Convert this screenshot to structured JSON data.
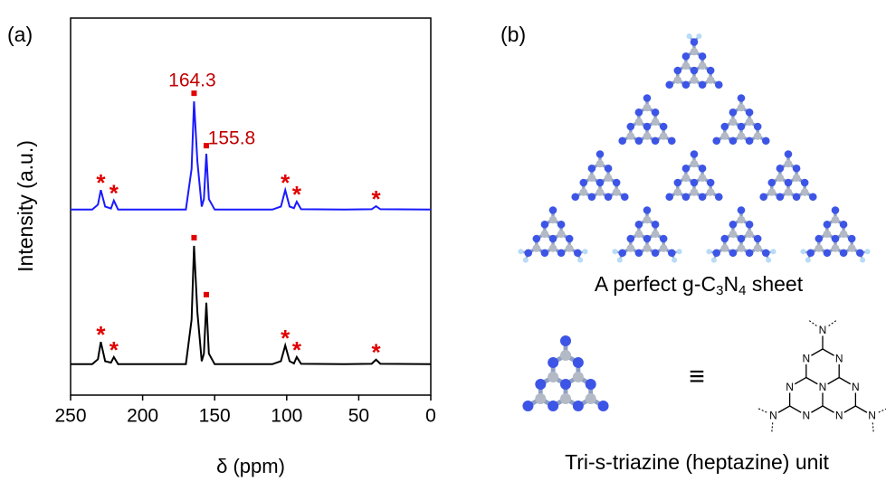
{
  "chart_data": {
    "type": "line",
    "panel_label": "(a)",
    "y_label": "Intensity (a.u.)",
    "x_label": "δ (ppm)",
    "xlim": [
      250,
      0
    ],
    "xticks": [
      250,
      200,
      150,
      100,
      50,
      0
    ],
    "ylim": [
      0,
      100
    ],
    "x": [
      250,
      235,
      231,
      229,
      226,
      222,
      220,
      217,
      200,
      170,
      166,
      164.3,
      162,
      159,
      157.5,
      155.8,
      154,
      150,
      110,
      104,
      101,
      98,
      95,
      93,
      90,
      60,
      41,
      38,
      35,
      0
    ],
    "series": [
      {
        "color": "#1a1aff",
        "values": [
          49.2,
          49.2,
          50.5,
          54.4,
          50,
          49.5,
          51.6,
          49.2,
          49.2,
          49.2,
          60,
          77.9,
          62,
          50,
          52,
          64,
          52,
          49.2,
          49.2,
          50,
          54.4,
          50,
          49.6,
          51.3,
          49.3,
          49.2,
          49.3,
          50.1,
          49.3,
          49.2
        ]
      },
      {
        "color": "#000000",
        "values": [
          8.2,
          8.2,
          9.5,
          14.1,
          9,
          8.6,
          10.1,
          8.2,
          8.2,
          8.2,
          20,
          39.6,
          22,
          9,
          11,
          24.5,
          11,
          8.2,
          8.2,
          9,
          13.2,
          9,
          8.4,
          10.1,
          8.3,
          8.2,
          8.3,
          9.4,
          8.3,
          8.2
        ]
      }
    ],
    "main_peaks": {
      "x": [
        164.3,
        155.8
      ],
      "color": "#e00000"
    },
    "annotations": [
      "164.3",
      "155.8"
    ],
    "sidebands": {
      "label": "*",
      "x": [
        229,
        220,
        101,
        93,
        38
      ]
    }
  },
  "panel_b": {
    "panel_label": "(b)",
    "sheet_caption": {
      "prefix": "A perfect  g-C",
      "sub1": "3",
      "mid": "N",
      "sub2": "4",
      "suffix": " sheet"
    },
    "equivalence": "≡",
    "atom_label": "N",
    "unit_caption": "Tri-s-triazine (heptazine) unit"
  }
}
